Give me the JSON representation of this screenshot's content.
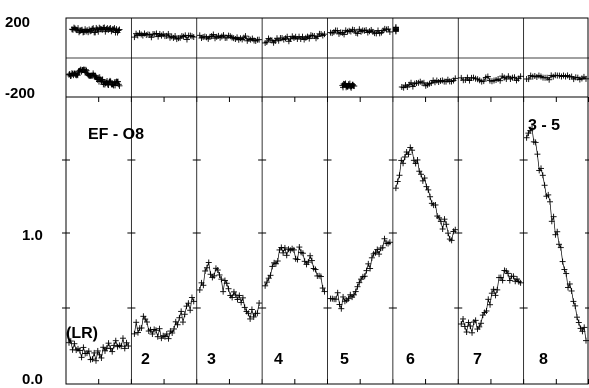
{
  "chart_data": {
    "type": "scatter",
    "panels": [
      {
        "name": "phase",
        "yticks": [
          "200",
          "-200"
        ],
        "ylim": [
          -200,
          200
        ],
        "grid": "horizontal line at 0, vertical lines at baseline boundaries",
        "segments": [
          {
            "label": "(LR)",
            "top": [
              [
                0.05,
                185
              ],
              [
                0.3,
                170
              ],
              [
                0.55,
                188
              ],
              [
                0.85,
                175
              ]
            ],
            "bottom": [
              [
                0.0,
                -110
              ],
              [
                0.1,
                -120
              ],
              [
                0.2,
                -80
              ],
              [
                0.3,
                -95
              ],
              [
                0.45,
                -130
              ],
              [
                0.6,
                -165
              ],
              [
                0.85,
                -175
              ]
            ]
          },
          {
            "label": "2",
            "top": [
              [
                0.0,
                145
              ],
              [
                0.5,
                140
              ],
              [
                1.0,
                128
              ]
            ]
          },
          {
            "label": "3",
            "top": [
              [
                0.0,
                130
              ],
              [
                0.4,
                145
              ],
              [
                1.0,
                115
              ]
            ]
          },
          {
            "label": "4",
            "top": [
              [
                0.0,
                108
              ],
              [
                0.5,
                125
              ],
              [
                1.0,
                145
              ]
            ]
          },
          {
            "label": "5",
            "top": [
              [
                0.0,
                160
              ],
              [
                0.5,
                170
              ],
              [
                1.0,
                175
              ]
            ],
            "bottom": [
              [
                0.2,
                -180
              ],
              [
                0.4,
                -185
              ]
            ]
          },
          {
            "label": "6",
            "top": [
              [
                0.0,
                185
              ]
            ],
            "bottom": [
              [
                0.1,
                -185
              ],
              [
                0.5,
                -170
              ],
              [
                1.0,
                -150
              ]
            ]
          },
          {
            "label": "7",
            "bottom": [
              [
                0.0,
                -150
              ],
              [
                0.5,
                -140
              ],
              [
                1.0,
                -135
              ]
            ]
          },
          {
            "label": "8",
            "bottom": [
              [
                0.0,
                -135
              ],
              [
                0.5,
                -130
              ],
              [
                1.0,
                -132
              ]
            ]
          }
        ]
      },
      {
        "name": "amplitude",
        "title": "EF - O8",
        "annotation": "3 - 5",
        "yticks": [
          "1.0",
          "0.0"
        ],
        "ylim": [
          0.0,
          2.25
        ],
        "segments": [
          {
            "label": "(LR)",
            "values": [
              [
                0,
                0.24
              ],
              [
                0.2,
                0.18
              ],
              [
                0.45,
                0.14
              ],
              [
                0.7,
                0.2
              ],
              [
                1.0,
                0.24
              ]
            ]
          },
          {
            "label": "2",
            "values": [
              [
                0,
                0.33
              ],
              [
                0.15,
                0.4
              ],
              [
                0.35,
                0.32
              ],
              [
                0.6,
                0.28
              ],
              [
                0.8,
                0.42
              ],
              [
                1.0,
                0.55
              ]
            ]
          },
          {
            "label": "3",
            "values": [
              [
                0,
                0.62
              ],
              [
                0.15,
                0.75
              ],
              [
                0.3,
                0.7
              ],
              [
                0.5,
                0.58
              ],
              [
                0.7,
                0.52
              ],
              [
                0.85,
                0.45
              ],
              [
                1.0,
                0.47
              ]
            ]
          },
          {
            "label": "4",
            "values": [
              [
                0,
                0.6
              ],
              [
                0.15,
                0.82
              ],
              [
                0.3,
                0.88
              ],
              [
                0.55,
                0.86
              ],
              [
                0.75,
                0.82
              ],
              [
                0.9,
                0.72
              ],
              [
                1.0,
                0.62
              ]
            ]
          },
          {
            "label": "5",
            "values": [
              [
                0,
                0.58
              ],
              [
                0.2,
                0.52
              ],
              [
                0.4,
                0.55
              ],
              [
                0.55,
                0.68
              ],
              [
                0.7,
                0.8
              ],
              [
                0.85,
                0.88
              ],
              [
                1.0,
                0.98
              ]
            ]
          },
          {
            "label": "6",
            "values": [
              [
                0,
                1.3
              ],
              [
                0.12,
                1.52
              ],
              [
                0.25,
                1.55
              ],
              [
                0.4,
                1.45
              ],
              [
                0.55,
                1.3
              ],
              [
                0.7,
                1.15
              ],
              [
                0.85,
                1.02
              ],
              [
                1.0,
                0.98
              ]
            ]
          },
          {
            "label": "7",
            "values": [
              [
                0,
                0.4
              ],
              [
                0.15,
                0.33
              ],
              [
                0.3,
                0.38
              ],
              [
                0.45,
                0.5
              ],
              [
                0.6,
                0.62
              ],
              [
                0.75,
                0.72
              ],
              [
                0.9,
                0.7
              ],
              [
                1.0,
                0.62
              ]
            ]
          },
          {
            "label": "8",
            "values": [
              [
                0,
                1.62
              ],
              [
                0.08,
                1.72
              ],
              [
                0.18,
                1.52
              ],
              [
                0.3,
                1.35
              ],
              [
                0.45,
                1.08
              ],
              [
                0.6,
                0.82
              ],
              [
                0.75,
                0.58
              ],
              [
                0.9,
                0.38
              ],
              [
                1.0,
                0.28
              ]
            ]
          }
        ]
      }
    ]
  }
}
